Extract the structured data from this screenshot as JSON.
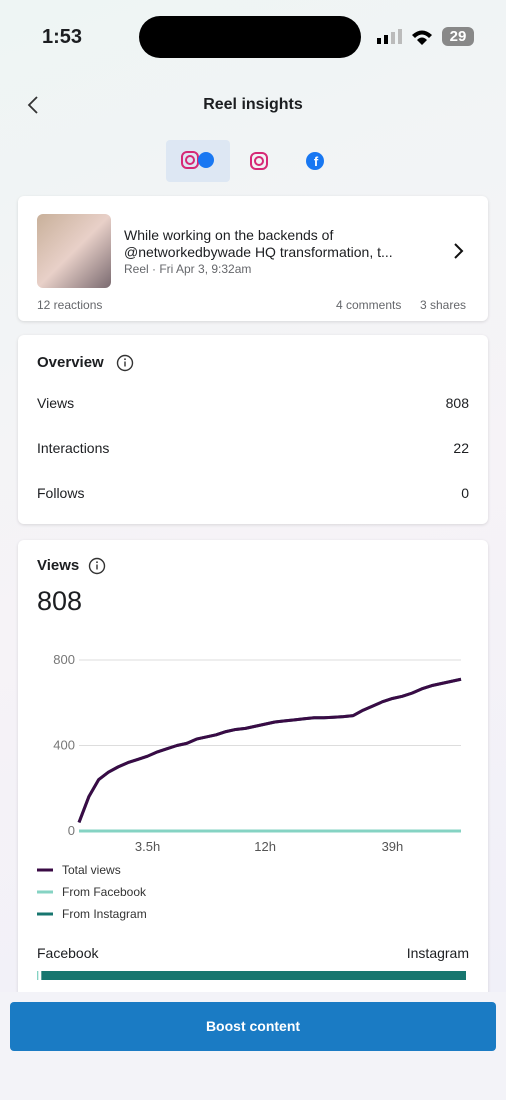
{
  "status": {
    "time": "1:53",
    "battery": "29"
  },
  "header": {
    "title": "Reel insights"
  },
  "post": {
    "text_line1": "While working on the backends of",
    "text_line2": "@networkedbywade HQ transformation, t...",
    "meta": "Reel · Fri Apr 3, 9:32am",
    "reactions": "12 reactions",
    "comments": "4 comments",
    "shares": "3 shares"
  },
  "overview": {
    "title": "Overview",
    "rows": [
      {
        "label": "Views",
        "value": 808
      },
      {
        "label": "Interactions",
        "value": 22
      },
      {
        "label": "Follows",
        "value": 0
      }
    ]
  },
  "views": {
    "title": "Views",
    "total": 808,
    "chart_data": {
      "type": "line",
      "categories": [
        null,
        null,
        null,
        null,
        null,
        null,
        null,
        "3.5h",
        null,
        null,
        null,
        null,
        null,
        null,
        null,
        null,
        null,
        null,
        null,
        "12h",
        null,
        null,
        null,
        null,
        null,
        null,
        null,
        null,
        null,
        null,
        null,
        null,
        "39h",
        null,
        null,
        null,
        null,
        null,
        null,
        null
      ],
      "series": [
        {
          "name": "Total views",
          "color": "#3a0b45",
          "values": [
            40,
            160,
            240,
            275,
            300,
            320,
            335,
            350,
            370,
            385,
            400,
            410,
            430,
            440,
            450,
            465,
            475,
            480,
            490,
            500,
            510,
            515,
            520,
            525,
            530,
            530,
            532,
            535,
            540,
            565,
            585,
            605,
            620,
            630,
            645,
            665,
            680,
            690,
            700,
            710
          ]
        },
        {
          "name": "From Facebook",
          "color": "#85d3c3",
          "values": [
            0,
            0,
            0,
            0,
            0,
            0,
            0,
            0,
            0,
            0,
            0,
            0,
            0,
            0,
            0,
            0,
            0,
            0,
            0,
            0,
            0,
            0,
            0,
            0,
            0,
            0,
            0,
            0,
            0,
            0,
            0,
            0,
            0,
            0,
            0,
            0,
            0,
            0,
            0,
            0
          ]
        },
        {
          "name": "From Instagram",
          "color": "#17766f",
          "values": [
            40,
            160,
            240,
            275,
            300,
            320,
            335,
            350,
            370,
            385,
            400,
            410,
            430,
            440,
            450,
            465,
            475,
            480,
            490,
            500,
            510,
            515,
            520,
            525,
            530,
            530,
            532,
            535,
            540,
            565,
            585,
            605,
            620,
            630,
            645,
            665,
            680,
            690,
            700,
            710
          ]
        }
      ],
      "ylim": [
        0,
        800
      ],
      "yticks": [
        0,
        400,
        800
      ],
      "grid": true
    },
    "split": {
      "labels": [
        "Facebook",
        "Instagram"
      ],
      "values": [
        1,
        99
      ],
      "colors": [
        "#85d3c3",
        "#17766f"
      ]
    }
  },
  "footer": {
    "button": "Boost content"
  }
}
